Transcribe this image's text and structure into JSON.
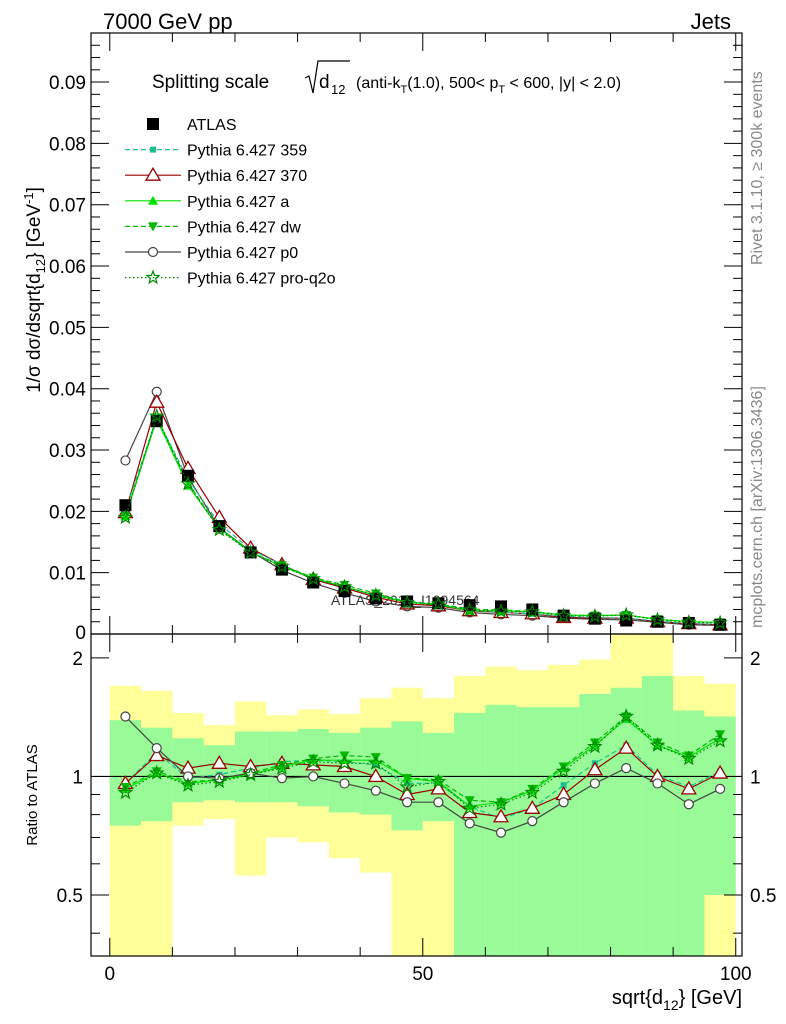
{
  "header": {
    "energy": "7000 GeV pp",
    "process": "Jets"
  },
  "side_labels": {
    "rivet": "Rivet 3.1.10, ≥ 300k events",
    "source": "mcplots.cern.ch [arXiv:1306.3436]"
  },
  "watermark": "ATLAS_2012_I1094564",
  "chart_data": [
    {
      "panel": "main",
      "type": "scatter",
      "title_parts": {
        "prefix": "Splitting scale",
        "sqrt_var": "d",
        "sqrt_sub": "12",
        "p1": "(anti-k",
        "p1_sub": "T",
        "p2": "(1.0), 500< p",
        "p2_sub": "T",
        "p3": " < 600, |y| < 2.0)"
      },
      "ylabel": "1/σ dσ/dsqrt{d12} [GeV-1]",
      "ylabel_parts": {
        "a": "1/σ dσ/dsqrt{d",
        "a_sub": "12",
        "b": "} [GeV",
        "b_sup": "-1",
        "c": "]"
      },
      "xlim": [
        0,
        100
      ],
      "ylim": [
        0,
        0.098
      ],
      "y_ticks": [
        "0.01",
        "0.02",
        "0.03",
        "0.04",
        "0.05",
        "0.06",
        "0.07",
        "0.08",
        "0.09"
      ],
      "y_tick_values": [
        0.01,
        0.02,
        0.03,
        0.04,
        0.05,
        0.06,
        0.07,
        0.08,
        0.09
      ],
      "y_zero_label": "0",
      "x": [
        2.5,
        7.5,
        12.5,
        17.5,
        22.5,
        27.5,
        32.5,
        37.5,
        42.5,
        47.5,
        52.5,
        57.5,
        62.5,
        67.5,
        72.5,
        77.5,
        82.5,
        87.5,
        92.5,
        97.5
      ],
      "series": [
        {
          "name": "ATLAS",
          "values": [
            0.021,
            0.0347,
            0.0258,
            0.0176,
            0.0133,
            0.0105,
            0.0084,
            0.007,
            0.0058,
            0.0053,
            0.005,
            0.0047,
            0.0045,
            0.004,
            0.003,
            0.0025,
            0.0022,
            0.002,
            0.0018,
            0.0015
          ]
        },
        {
          "name": "Pythia 6.427 359",
          "values": [
            0.02,
            0.0353,
            0.0252,
            0.018,
            0.0138,
            0.0113,
            0.0091,
            0.0077,
            0.0063,
            0.0054,
            0.0048,
            0.0039,
            0.0035,
            0.0033,
            0.0029,
            0.0027,
            0.0026,
            0.0021,
            0.0017,
            0.0016
          ]
        },
        {
          "name": "Pythia 6.427 370",
          "values": [
            0.0198,
            0.0378,
            0.027,
            0.019,
            0.014,
            0.0113,
            0.0089,
            0.0075,
            0.006,
            0.0049,
            0.0046,
            0.0038,
            0.0035,
            0.0033,
            0.0027,
            0.0026,
            0.0026,
            0.002,
            0.0017,
            0.0015
          ]
        },
        {
          "name": "Pythia 6.427 a",
          "values": [
            0.0192,
            0.035,
            0.0242,
            0.0172,
            0.0134,
            0.011,
            0.0091,
            0.0077,
            0.0063,
            0.0052,
            0.0048,
            0.0038,
            0.0038,
            0.0036,
            0.0031,
            0.003,
            0.0031,
            0.0024,
            0.002,
            0.0019
          ]
        },
        {
          "name": "Pythia 6.427 dw",
          "values": [
            0.0192,
            0.0353,
            0.0247,
            0.0171,
            0.0133,
            0.0112,
            0.0092,
            0.008,
            0.0066,
            0.0052,
            0.0049,
            0.0041,
            0.0039,
            0.0037,
            0.0031,
            0.003,
            0.0031,
            0.0024,
            0.002,
            0.0019
          ]
        },
        {
          "name": "Pythia 6.427 p0",
          "values": [
            0.0283,
            0.0395,
            0.0256,
            0.0173,
            0.0135,
            0.0104,
            0.0083,
            0.0067,
            0.0053,
            0.0045,
            0.0043,
            0.0035,
            0.0032,
            0.003,
            0.0026,
            0.0024,
            0.0023,
            0.0019,
            0.0015,
            0.0014
          ]
        },
        {
          "name": "Pythia 6.427 pro-q2o",
          "values": [
            0.019,
            0.0355,
            0.0245,
            0.017,
            0.0133,
            0.011,
            0.009,
            0.0077,
            0.0063,
            0.0051,
            0.0049,
            0.0039,
            0.0037,
            0.0036,
            0.003,
            0.0029,
            0.0031,
            0.0023,
            0.0019,
            0.0018
          ]
        }
      ]
    },
    {
      "panel": "ratio",
      "type": "scatter",
      "ylabel": "Ratio to ATLAS",
      "xlabel": "sqrt{d12} [GeV]",
      "xlabel_parts": {
        "a": "sqrt{d",
        "a_sub": "12",
        "b": "} [GeV]"
      },
      "xlim": [
        -3,
        101
      ],
      "ylim": [
        0.35,
        2.3
      ],
      "yscale": "log",
      "x_ticks": [
        "0",
        "50",
        "100"
      ],
      "x_tick_values": [
        0,
        50,
        100
      ],
      "y_ticks": [
        "0.5",
        "1",
        "2"
      ],
      "y_tick_values": [
        0.5,
        1,
        2
      ],
      "x": [
        2.5,
        7.5,
        12.5,
        17.5,
        22.5,
        27.5,
        32.5,
        37.5,
        42.5,
        47.5,
        52.5,
        57.5,
        62.5,
        67.5,
        72.5,
        77.5,
        82.5,
        87.5,
        92.5,
        97.5
      ],
      "band_inner": {
        "lo": [
          0.75,
          0.77,
          0.86,
          0.87,
          0.86,
          0.86,
          0.84,
          0.81,
          0.8,
          0.73,
          0.77,
          0.35,
          0.35,
          0.35,
          0.35,
          0.35,
          0.35,
          0.35,
          0.35,
          0.5
        ],
        "hi": [
          1.39,
          1.33,
          1.25,
          1.2,
          1.3,
          1.3,
          1.32,
          1.29,
          1.33,
          1.38,
          1.29,
          1.45,
          1.52,
          1.5,
          1.5,
          1.62,
          1.68,
          1.8,
          1.47,
          1.42
        ]
      },
      "band_outer": {
        "lo": [
          0.35,
          0.35,
          0.75,
          0.78,
          0.56,
          0.7,
          0.68,
          0.62,
          0.57,
          0.35,
          0.35,
          0.35,
          0.35,
          0.35,
          0.35,
          0.35,
          0.35,
          0.35,
          0.35,
          0.35
        ],
        "hi": [
          1.7,
          1.65,
          1.45,
          1.35,
          1.55,
          1.43,
          1.48,
          1.44,
          1.58,
          1.68,
          1.58,
          1.8,
          1.9,
          1.86,
          1.92,
          1.98,
          2.3,
          2.3,
          1.8,
          1.72
        ]
      },
      "series": [
        {
          "name": "Pythia 6.427 359",
          "values": [
            0.96,
            1.15,
            0.99,
            1.01,
            1.05,
            1.09,
            1.1,
            1.09,
            1.07,
            0.96,
            0.96,
            0.84,
            0.78,
            0.83,
            0.95,
            1.08,
            1.2,
            1.01,
            0.94,
            1.03
          ]
        },
        {
          "name": "Pythia 6.427 370",
          "values": [
            0.96,
            1.13,
            1.05,
            1.08,
            1.06,
            1.08,
            1.07,
            1.06,
            1.0,
            0.9,
            0.93,
            0.81,
            0.79,
            0.83,
            0.9,
            1.04,
            1.18,
            1.0,
            0.93,
            1.02
          ]
        },
        {
          "name": "Pythia 6.427 a",
          "values": [
            0.93,
            1.02,
            0.96,
            0.98,
            1.01,
            1.06,
            1.1,
            1.1,
            1.1,
            0.99,
            0.97,
            0.84,
            0.86,
            0.92,
            1.05,
            1.2,
            1.4,
            1.2,
            1.12,
            1.25
          ]
        },
        {
          "name": "Pythia 6.427 dw",
          "values": [
            0.94,
            1.03,
            0.97,
            0.98,
            1.02,
            1.07,
            1.11,
            1.13,
            1.12,
            0.99,
            0.98,
            0.87,
            0.86,
            0.93,
            1.06,
            1.22,
            1.42,
            1.22,
            1.13,
            1.28
          ]
        },
        {
          "name": "Pythia 6.427 p0",
          "values": [
            1.42,
            1.18,
            1.0,
            0.99,
            1.02,
            0.99,
            1.0,
            0.96,
            0.92,
            0.86,
            0.86,
            0.76,
            0.72,
            0.77,
            0.86,
            0.96,
            1.05,
            0.96,
            0.85,
            0.93
          ]
        },
        {
          "name": "Pythia 6.427 pro-q2o",
          "values": [
            0.91,
            1.02,
            0.95,
            0.97,
            1.01,
            1.05,
            1.09,
            1.08,
            1.08,
            0.94,
            0.97,
            0.83,
            0.85,
            0.91,
            1.03,
            1.19,
            1.42,
            1.2,
            1.11,
            1.23
          ]
        }
      ]
    }
  ],
  "legend": [
    {
      "label": "ATLAS",
      "color": "#000000",
      "marker": "filled-square",
      "line": "none"
    },
    {
      "label": "Pythia 6.427 359",
      "color": "#1dbf8e",
      "marker": "small-filled-square",
      "line": "dashed"
    },
    {
      "label": "Pythia 6.427 370",
      "color": "#990000",
      "marker": "open-triangle",
      "line": "solid"
    },
    {
      "label": "Pythia 6.427 a",
      "color": "#00e000",
      "marker": "filled-triangle",
      "line": "solid"
    },
    {
      "label": "Pythia 6.427 dw",
      "color": "#00b800",
      "marker": "filled-inverted-triangle",
      "line": "dashed"
    },
    {
      "label": "Pythia 6.427 p0",
      "color": "#444444",
      "marker": "open-circle",
      "line": "solid"
    },
    {
      "label": "Pythia 6.427 pro-q2o",
      "color": "#008800",
      "marker": "open-star",
      "line": "dotted"
    }
  ],
  "colors": {
    "band_inner": "#98fb98",
    "band_outer": "#ffff99",
    "watermark": "#999999",
    "side_text": "#888888"
  }
}
